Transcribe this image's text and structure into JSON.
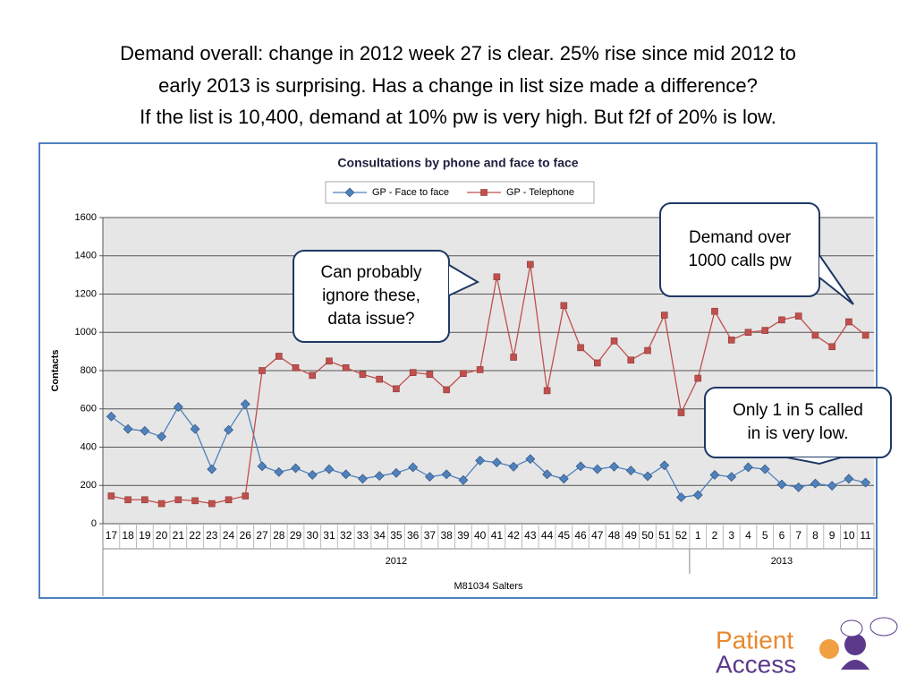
{
  "slide_title": [
    "Demand overall:  change in 2012 week 27 is clear.  25% rise since mid 2012 to",
    "early 2013 is surprising.  Has a change in list size made a difference?",
    "If the list is 10,400, demand at 10% pw is very high.  But f2f of 20% is low."
  ],
  "chart_data": {
    "type": "line",
    "title": "Consultations by phone and face to face",
    "categories": [
      17,
      18,
      19,
      20,
      21,
      22,
      23,
      24,
      26,
      27,
      28,
      29,
      30,
      31,
      32,
      33,
      34,
      35,
      36,
      37,
      38,
      39,
      40,
      41,
      42,
      43,
      44,
      45,
      46,
      47,
      48,
      49,
      50,
      51,
      52,
      1,
      2,
      3,
      4,
      5,
      6,
      7,
      8,
      9,
      10,
      11
    ],
    "x_groups": [
      "2012",
      "2013"
    ],
    "xlabel": "M81034 Salters",
    "ylabel": "Contacts",
    "series": [
      {
        "name": "GP - Face to face",
        "color": "#4f81bd",
        "marker": "diamond",
        "values": [
          560,
          495,
          485,
          455,
          610,
          495,
          285,
          490,
          625,
          300,
          270,
          290,
          255,
          285,
          258,
          235,
          250,
          265,
          295,
          245,
          258,
          228,
          330,
          320,
          298,
          338,
          258,
          235,
          300,
          285,
          298,
          278,
          248,
          305,
          138,
          150,
          255,
          245,
          295,
          285,
          205,
          190,
          210,
          198,
          235,
          215
        ]
      },
      {
        "name": "GP - Telephone",
        "color": "#c0504d",
        "marker": "square",
        "values": [
          145,
          125,
          125,
          105,
          125,
          120,
          105,
          125,
          145,
          800,
          875,
          815,
          775,
          850,
          815,
          780,
          755,
          705,
          790,
          780,
          700,
          785,
          805,
          1290,
          870,
          1355,
          695,
          1140,
          920,
          840,
          955,
          855,
          905,
          1090,
          580,
          760,
          1110,
          960,
          1000,
          1010,
          1065,
          1085,
          985,
          925,
          1055,
          985
        ]
      }
    ],
    "ylim": [
      0,
      1600
    ],
    "yticks": [
      0,
      200,
      400,
      600,
      800,
      1000,
      1200,
      1400,
      1600
    ],
    "grid": true,
    "legend": "top"
  },
  "annotations": [
    {
      "lines": [
        "Can probably",
        "ignore these,",
        "data issue?"
      ]
    },
    {
      "lines": [
        "Demand over",
        "1000 calls pw"
      ]
    },
    {
      "lines": [
        "Only 1 in 5 called",
        "in is very low."
      ]
    }
  ],
  "logo": {
    "word1": "Patient",
    "word2": "Access"
  }
}
